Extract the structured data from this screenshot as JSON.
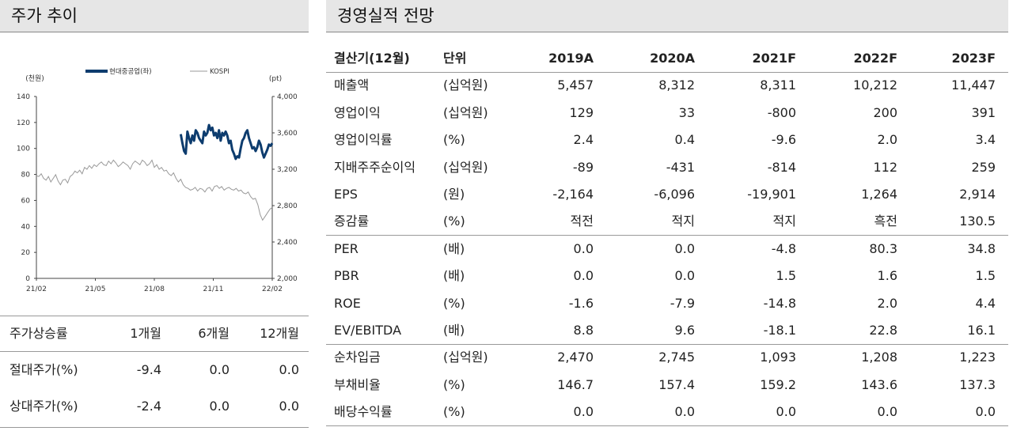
{
  "left_panel": {
    "title": "주가 추이",
    "chart_data": {
      "type": "line",
      "legend": [
        {
          "name": "현대중공업(좌)",
          "color": "#0d3c6e"
        },
        {
          "name": "KOSPI",
          "color": "#999999"
        }
      ],
      "y_left_label": "(천원)",
      "y_right_label": "(pt)",
      "y_left_ticks": [
        "140",
        "120",
        "100",
        "80",
        "60",
        "40",
        "20",
        "0"
      ],
      "y_right_ticks": [
        "4,000",
        "3,600",
        "3,200",
        "2,800",
        "2,400",
        "2,000"
      ],
      "x_ticks": [
        "21/02",
        "21/05",
        "21/08",
        "21/11",
        "22/02"
      ],
      "ylim_left": [
        0,
        140
      ],
      "ylim_right": [
        2000,
        4000
      ],
      "series": [
        {
          "name": "현대중공업(좌)",
          "x_start": "2021-09",
          "values": [
            111,
            104,
            98,
            96,
            113,
            108,
            104,
            110,
            106,
            114,
            112,
            108,
            106,
            104,
            113,
            110,
            112,
            118,
            114,
            116,
            110,
            112,
            108,
            114,
            106,
            112,
            110,
            113,
            110,
            104,
            106,
            99,
            96,
            92,
            94,
            93,
            100,
            106,
            108,
            112,
            114,
            108,
            104,
            100,
            101,
            98,
            101,
            106,
            103,
            97,
            93,
            96,
            99,
            103,
            102,
            104
          ]
        },
        {
          "name": "KOSPI",
          "x_start": "2021-02",
          "values": [
            3130,
            3120,
            3150,
            3100,
            3080,
            3120,
            3060,
            3100,
            3140,
            3070,
            3030,
            3080,
            3090,
            3050,
            3120,
            3140,
            3180,
            3160,
            3190,
            3150,
            3220,
            3200,
            3240,
            3210,
            3250,
            3230,
            3260,
            3280,
            3250,
            3240,
            3290,
            3260,
            3300,
            3270,
            3230,
            3250,
            3280,
            3260,
            3240,
            3200,
            3260,
            3290,
            3270,
            3250,
            3300,
            3280,
            3240,
            3260,
            3300,
            3220,
            3250,
            3200,
            3220,
            3180,
            3190,
            3150,
            3130,
            3160,
            3100,
            3060,
            3090,
            3030,
            3000,
            2990,
            2970,
            2980,
            3000,
            2960,
            2990,
            2980,
            2950,
            2990,
            3000,
            2960,
            3010,
            3020,
            2990,
            3010,
            2970,
            2990,
            3000,
            2980,
            2970,
            2990,
            2960,
            2970,
            2940,
            2930,
            2950,
            2900,
            2870,
            2880,
            2810,
            2700,
            2640,
            2680,
            2720,
            2760,
            2780
          ]
        }
      ]
    },
    "stats": {
      "header": [
        "주가상승률",
        "1개월",
        "6개월",
        "12개월"
      ],
      "rows": [
        {
          "label": "절대주가(%)",
          "values": [
            "-9.4",
            "0.0",
            "0.0"
          ]
        },
        {
          "label": "상대주가(%)",
          "values": [
            "-2.4",
            "0.0",
            "0.0"
          ]
        }
      ]
    }
  },
  "right_panel": {
    "title": "경영실적 전망",
    "header": [
      "결산기(12월)",
      "단위",
      "2019A",
      "2020A",
      "2021F",
      "2022F",
      "2023F"
    ],
    "groups": [
      [
        {
          "label": "매출액",
          "unit": "(십억원)",
          "values": [
            "5,457",
            "8,312",
            "8,311",
            "10,212",
            "11,447"
          ]
        },
        {
          "label": "영업이익",
          "unit": "(십억원)",
          "values": [
            "129",
            "33",
            "-800",
            "200",
            "391"
          ]
        },
        {
          "label": "영업이익률",
          "unit": "(%)",
          "values": [
            "2.4",
            "0.4",
            "-9.6",
            "2.0",
            "3.4"
          ]
        },
        {
          "label": "지배주주순이익",
          "unit": "(십억원)",
          "values": [
            "-89",
            "-431",
            "-814",
            "112",
            "259"
          ]
        },
        {
          "label": "EPS",
          "unit": "(원)",
          "values": [
            "-2,164",
            "-6,096",
            "-19,901",
            "1,264",
            "2,914"
          ]
        },
        {
          "label": "증감률",
          "unit": "(%)",
          "values": [
            "적전",
            "적지",
            "적지",
            "흑전",
            "130.5"
          ]
        }
      ],
      [
        {
          "label": "PER",
          "unit": "(배)",
          "values": [
            "0.0",
            "0.0",
            "-4.8",
            "80.3",
            "34.8"
          ]
        },
        {
          "label": "PBR",
          "unit": "(배)",
          "values": [
            "0.0",
            "0.0",
            "1.5",
            "1.6",
            "1.5"
          ]
        },
        {
          "label": "ROE",
          "unit": "(%)",
          "values": [
            "-1.6",
            "-7.9",
            "-14.8",
            "2.0",
            "4.4"
          ]
        },
        {
          "label": "EV/EBITDA",
          "unit": "(배)",
          "values": [
            "8.8",
            "9.6",
            "-18.1",
            "22.8",
            "16.1"
          ]
        }
      ],
      [
        {
          "label": "순차입금",
          "unit": "(십억원)",
          "values": [
            "2,470",
            "2,745",
            "1,093",
            "1,208",
            "1,223"
          ]
        },
        {
          "label": "부채비율",
          "unit": "(%)",
          "values": [
            "146.7",
            "157.4",
            "159.2",
            "143.6",
            "137.3"
          ]
        },
        {
          "label": "배당수익률",
          "unit": "(%)",
          "values": [
            "0.0",
            "0.0",
            "0.0",
            "0.0",
            "0.0"
          ]
        }
      ]
    ]
  }
}
